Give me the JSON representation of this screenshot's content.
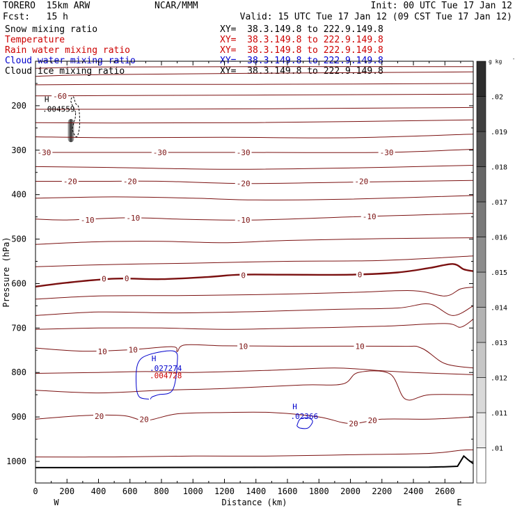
{
  "header": {
    "model": "TORERO  15km ARW",
    "center": "NCAR/MMM",
    "init": "Init: 00 UTC Tue 17 Jan 12",
    "fcst": "Fcst:   15 h",
    "valid": "Valid: 15 UTC Tue 17 Jan 12 (09 CST Tue 17 Jan 12)"
  },
  "fields": [
    {
      "name": "Snow mixing ratio",
      "xy": "XY=  38.3.149.8 to 222.9.149.8",
      "color": "#000000"
    },
    {
      "name": "Temperature",
      "xy": "XY=  38.3.149.8 to 222.9.149.8",
      "color": "#cc0000"
    },
    {
      "name": "Rain water mixing ratio",
      "xy": "XY=  38.3.149.8 to 222.9.149.8",
      "color": "#cc0000"
    },
    {
      "name": "Cloud water mixing ratio",
      "xy": "XY=  38.3.149.8 to 222.9.149.8",
      "color": "#0000cc"
    },
    {
      "name": "Cloud ice mixing ratio",
      "xy": "XY=  38.3.149.8 to 222.9.149.8",
      "color": "#000000"
    }
  ],
  "chart_data": {
    "type": "contour",
    "xlabel": "Distance (km)",
    "ylabel": "Pressure (hPa)",
    "xlim": [
      0,
      2780
    ],
    "ylim": [
      1050,
      100
    ],
    "x_ticks": [
      0,
      200,
      400,
      600,
      800,
      1000,
      1200,
      1400,
      1600,
      1800,
      2000,
      2200,
      2400,
      2600
    ],
    "y_ticks": [
      200,
      300,
      400,
      500,
      600,
      700,
      800,
      900,
      1000
    ],
    "x_end_labels": {
      "west": "W",
      "east": "E"
    },
    "colorbar": {
      "unit": "g kg",
      "unit_exp": "-1",
      "levels": [
        ".01",
        ".011",
        ".012",
        ".013",
        ".014",
        ".015",
        ".016",
        ".017",
        ".018",
        ".019",
        ".02"
      ]
    },
    "temperature_labels": [
      {
        "x": 155,
        "p": 178,
        "label": "-60"
      },
      {
        "x": 55,
        "p": 305,
        "label": "-30"
      },
      {
        "x": 790,
        "p": 305,
        "label": "-30"
      },
      {
        "x": 1320,
        "p": 305,
        "label": "-30"
      },
      {
        "x": 2230,
        "p": 305,
        "label": "-30"
      },
      {
        "x": 220,
        "p": 370,
        "label": "-20"
      },
      {
        "x": 600,
        "p": 370,
        "label": "-20"
      },
      {
        "x": 1320,
        "p": 375,
        "label": "-20"
      },
      {
        "x": 2070,
        "p": 370,
        "label": "-20"
      },
      {
        "x": 330,
        "p": 457,
        "label": "-10"
      },
      {
        "x": 620,
        "p": 452,
        "label": "-10"
      },
      {
        "x": 1320,
        "p": 457,
        "label": "-10"
      },
      {
        "x": 2120,
        "p": 449,
        "label": "-10"
      },
      {
        "x": 435,
        "p": 589,
        "label": "0"
      },
      {
        "x": 580,
        "p": 588,
        "label": "0"
      },
      {
        "x": 1320,
        "p": 581,
        "label": "0"
      },
      {
        "x": 2060,
        "p": 580,
        "label": "0"
      },
      {
        "x": 425,
        "p": 753,
        "label": "10"
      },
      {
        "x": 620,
        "p": 749,
        "label": "10"
      },
      {
        "x": 1320,
        "p": 741,
        "label": "10"
      },
      {
        "x": 2060,
        "p": 741,
        "label": "10"
      },
      {
        "x": 405,
        "p": 898,
        "label": "20"
      },
      {
        "x": 690,
        "p": 905,
        "label": "20"
      },
      {
        "x": 2020,
        "p": 915,
        "label": "20"
      },
      {
        "x": 2140,
        "p": 908,
        "label": "20"
      }
    ],
    "isotherms": [
      [
        [
          0,
          116
        ],
        [
          400,
          113
        ],
        [
          1400,
          112
        ],
        [
          2780,
          112
        ]
      ],
      [
        [
          0,
          134
        ],
        [
          400,
          130
        ],
        [
          1400,
          127
        ],
        [
          2780,
          124
        ]
      ],
      [
        [
          0,
          153
        ],
        [
          500,
          152
        ],
        [
          1400,
          152
        ],
        [
          2780,
          150
        ]
      ],
      [
        [
          0,
          178
        ],
        [
          600,
          177
        ],
        [
          1400,
          176
        ],
        [
          2780,
          174
        ]
      ],
      [
        [
          0,
          208
        ],
        [
          500,
          208
        ],
        [
          1400,
          207
        ],
        [
          2780,
          204
        ]
      ],
      [
        [
          0,
          238
        ],
        [
          500,
          239
        ],
        [
          1400,
          238
        ],
        [
          2780,
          232
        ]
      ],
      [
        [
          0,
          270
        ],
        [
          500,
          272
        ],
        [
          1200,
          271
        ],
        [
          2000,
          272
        ],
        [
          2780,
          264
        ]
      ],
      [
        [
          0,
          305
        ],
        [
          600,
          305
        ],
        [
          1300,
          305
        ],
        [
          2200,
          305
        ],
        [
          2780,
          298
        ]
      ],
      [
        [
          0,
          337
        ],
        [
          500,
          339
        ],
        [
          1200,
          343
        ],
        [
          2000,
          340
        ],
        [
          2780,
          334
        ]
      ],
      [
        [
          0,
          370
        ],
        [
          400,
          370
        ],
        [
          800,
          370
        ],
        [
          1320,
          375
        ],
        [
          2000,
          372
        ],
        [
          2780,
          368
        ]
      ],
      [
        [
          0,
          408
        ],
        [
          500,
          405
        ],
        [
          1000,
          408
        ],
        [
          1400,
          412
        ],
        [
          2000,
          410
        ],
        [
          2780,
          402
        ]
      ],
      [
        [
          0,
          455
        ],
        [
          200,
          457
        ],
        [
          600,
          452
        ],
        [
          1000,
          456
        ],
        [
          1400,
          457
        ],
        [
          2000,
          450
        ],
        [
          2400,
          446
        ],
        [
          2780,
          442
        ]
      ],
      [
        [
          0,
          512
        ],
        [
          400,
          506
        ],
        [
          800,
          505
        ],
        [
          1200,
          508
        ],
        [
          1600,
          503
        ],
        [
          2200,
          499
        ],
        [
          2780,
          497
        ]
      ],
      [
        [
          0,
          562
        ],
        [
          500,
          557
        ],
        [
          1000,
          554
        ],
        [
          1600,
          550
        ],
        [
          2200,
          548
        ],
        [
          2780,
          538
        ]
      ],
      [
        [
          0,
          607
        ],
        [
          200,
          598
        ],
        [
          500,
          589
        ],
        [
          800,
          590
        ],
        [
          1100,
          585
        ],
        [
          1300,
          580
        ],
        [
          1600,
          580
        ],
        [
          2000,
          580
        ],
        [
          2300,
          575
        ],
        [
          2500,
          565
        ],
        [
          2650,
          556
        ],
        [
          2720,
          568
        ],
        [
          2780,
          572
        ]
      ],
      [
        [
          0,
          635
        ],
        [
          400,
          628
        ],
        [
          900,
          627
        ],
        [
          1400,
          625
        ],
        [
          2000,
          620
        ],
        [
          2400,
          616
        ],
        [
          2600,
          628
        ],
        [
          2700,
          612
        ],
        [
          2780,
          608
        ]
      ],
      [
        [
          0,
          672
        ],
        [
          400,
          664
        ],
        [
          900,
          666
        ],
        [
          1400,
          663
        ],
        [
          1900,
          658
        ],
        [
          2300,
          655
        ],
        [
          2500,
          646
        ],
        [
          2650,
          672
        ],
        [
          2780,
          650
        ]
      ],
      [
        [
          0,
          703
        ],
        [
          400,
          700
        ],
        [
          800,
          700
        ],
        [
          1200,
          703
        ],
        [
          1700,
          700
        ],
        [
          2200,
          696
        ],
        [
          2600,
          690
        ],
        [
          2700,
          698
        ],
        [
          2780,
          680
        ]
      ],
      [
        [
          0,
          745
        ],
        [
          300,
          752
        ],
        [
          600,
          749
        ],
        [
          870,
          742
        ],
        [
          900,
          753
        ],
        [
          950,
          738
        ],
        [
          1200,
          740
        ],
        [
          1600,
          741
        ],
        [
          2300,
          741
        ],
        [
          2450,
          745
        ],
        [
          2600,
          780
        ],
        [
          2780,
          790
        ]
      ],
      [
        [
          0,
          802
        ],
        [
          400,
          800
        ],
        [
          700,
          798
        ],
        [
          1000,
          800
        ],
        [
          1500,
          795
        ],
        [
          1900,
          790
        ],
        [
          2200,
          796
        ],
        [
          2400,
          800
        ],
        [
          2780,
          805
        ]
      ],
      [
        [
          0,
          840
        ],
        [
          400,
          846
        ],
        [
          800,
          840
        ],
        [
          1200,
          836
        ],
        [
          1700,
          828
        ],
        [
          1950,
          826
        ],
        [
          2050,
          800
        ],
        [
          2250,
          803
        ],
        [
          2350,
          860
        ],
        [
          2500,
          850
        ],
        [
          2780,
          850
        ]
      ],
      [
        [
          0,
          905
        ],
        [
          300,
          897
        ],
        [
          560,
          897
        ],
        [
          700,
          908
        ],
        [
          900,
          893
        ],
        [
          1200,
          890
        ],
        [
          1500,
          890
        ],
        [
          1800,
          900
        ],
        [
          2000,
          915
        ],
        [
          2200,
          905
        ],
        [
          2500,
          905
        ],
        [
          2780,
          900
        ]
      ],
      [
        [
          0,
          990
        ],
        [
          500,
          990
        ],
        [
          1000,
          988
        ],
        [
          1500,
          988
        ],
        [
          2000,
          985
        ],
        [
          2500,
          982
        ],
        [
          2700,
          975
        ],
        [
          2780,
          974
        ]
      ]
    ],
    "bold_isotherm_index": 14,
    "maxima": [
      {
        "x": 45,
        "p": 207,
        "label": "H",
        "value": ".004559",
        "field": "snow",
        "color": "#000000"
      },
      {
        "x": 725,
        "p": 790,
        "label": "H",
        "value": ".027274",
        "field": "cloud_water",
        "color": "#0000cc"
      },
      {
        "x": 725,
        "p": 807,
        "label": "",
        "value": ".004728",
        "field": "rain_water",
        "color": "#cc0000"
      },
      {
        "x": 1620,
        "p": 898,
        "label": "H",
        "value": ".02366",
        "field": "cloud_water",
        "color": "#0000cc"
      }
    ],
    "cloud_water_contour": [
      [
        720,
        860
      ],
      [
        660,
        855
      ],
      [
        640,
        830
      ],
      [
        650,
        780
      ],
      [
        720,
        760
      ],
      [
        880,
        752
      ],
      [
        900,
        780
      ],
      [
        870,
        840
      ],
      [
        780,
        850
      ],
      [
        740,
        855
      ],
      [
        730,
        860
      ]
    ],
    "cloud_water_small": [
      [
        1660,
        920
      ],
      [
        1680,
        905
      ],
      [
        1730,
        902
      ],
      [
        1760,
        910
      ],
      [
        1730,
        925
      ],
      [
        1680,
        925
      ],
      [
        1660,
        920
      ]
    ],
    "snow_contour": [
      [
        255,
        215
      ],
      [
        225,
        190
      ],
      [
        240,
        180
      ],
      [
        255,
        195
      ],
      [
        275,
        205
      ],
      [
        280,
        245
      ],
      [
        262,
        270
      ],
      [
        235,
        255
      ],
      [
        242,
        240
      ],
      [
        252,
        228
      ],
      [
        255,
        215
      ]
    ],
    "snow_shade": {
      "x": 225,
      "p": 255,
      "width_km": 40,
      "p_top": 230,
      "p_bottom": 282
    },
    "terrain": [
      [
        0,
        1014
      ],
      [
        2500,
        1013
      ],
      [
        2600,
        1012
      ],
      [
        2680,
        1011
      ],
      [
        2720,
        988
      ],
      [
        2750,
        997
      ],
      [
        2780,
        1005
      ]
    ]
  }
}
